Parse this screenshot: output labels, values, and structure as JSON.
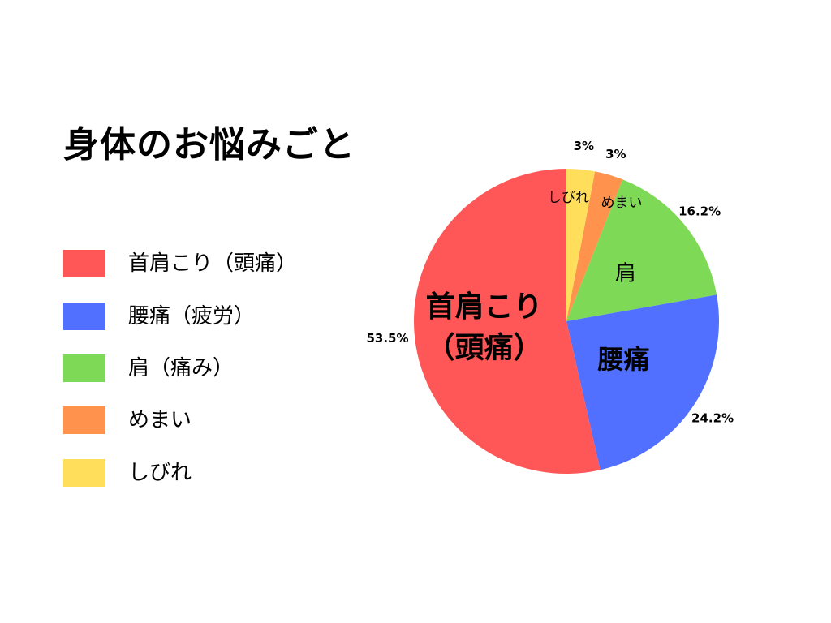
{
  "chart_data": {
    "type": "pie",
    "title": "身体のお悩みごと",
    "legend_position": "left",
    "slices": [
      {
        "legend": "しびれ",
        "inner_label": [
          "しびれ"
        ],
        "value": 3,
        "value_label": "3%",
        "color": "#FFDE5C"
      },
      {
        "legend": "めまい",
        "inner_label": [
          "めまい"
        ],
        "value": 3,
        "value_label": "3%",
        "color": "#FF924D"
      },
      {
        "legend": "肩（痛み）",
        "inner_label": [
          "肩"
        ],
        "value": 16.2,
        "value_label": "16.2%",
        "color": "#7ED957"
      },
      {
        "legend": "腰痛（疲労）",
        "inner_label": [
          "腰痛"
        ],
        "value": 24.2,
        "value_label": "24.2%",
        "color": "#5170FF"
      },
      {
        "legend": "首肩こり（頭痛）",
        "inner_label": [
          "首肩こり",
          "（頭痛）"
        ],
        "value": 53.5,
        "value_label": "53.5%",
        "color": "#FF5757"
      }
    ],
    "legend_order": [
      "首肩こり（頭痛）",
      "腰痛（疲労）",
      "肩（痛み）",
      "めまい",
      "しびれ"
    ]
  }
}
